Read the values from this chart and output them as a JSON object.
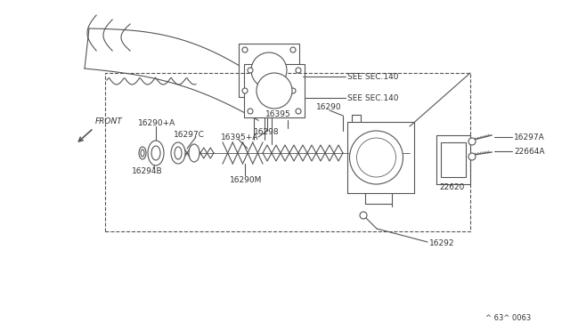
{
  "bg_color": "#ffffff",
  "figure_code": "^ 63^ 0063",
  "labels": {
    "SEE_SEC_140_top": "SEE SEC.140",
    "SEE_SEC_140_bot": "SEE SEC.140",
    "part_16298": "16298",
    "part_16290": "16290",
    "part_16395": "16395",
    "part_16395A": "16395+A",
    "part_16297C": "16297C",
    "part_16294B": "16294B",
    "part_16290A": "16290+A",
    "part_16290M": "16290M",
    "part_22620": "22620",
    "part_16297A": "16297A",
    "part_22664A": "22664A",
    "part_16292": "16292",
    "front_label": "FRONT"
  },
  "line_color": "#555555",
  "text_color": "#333333"
}
